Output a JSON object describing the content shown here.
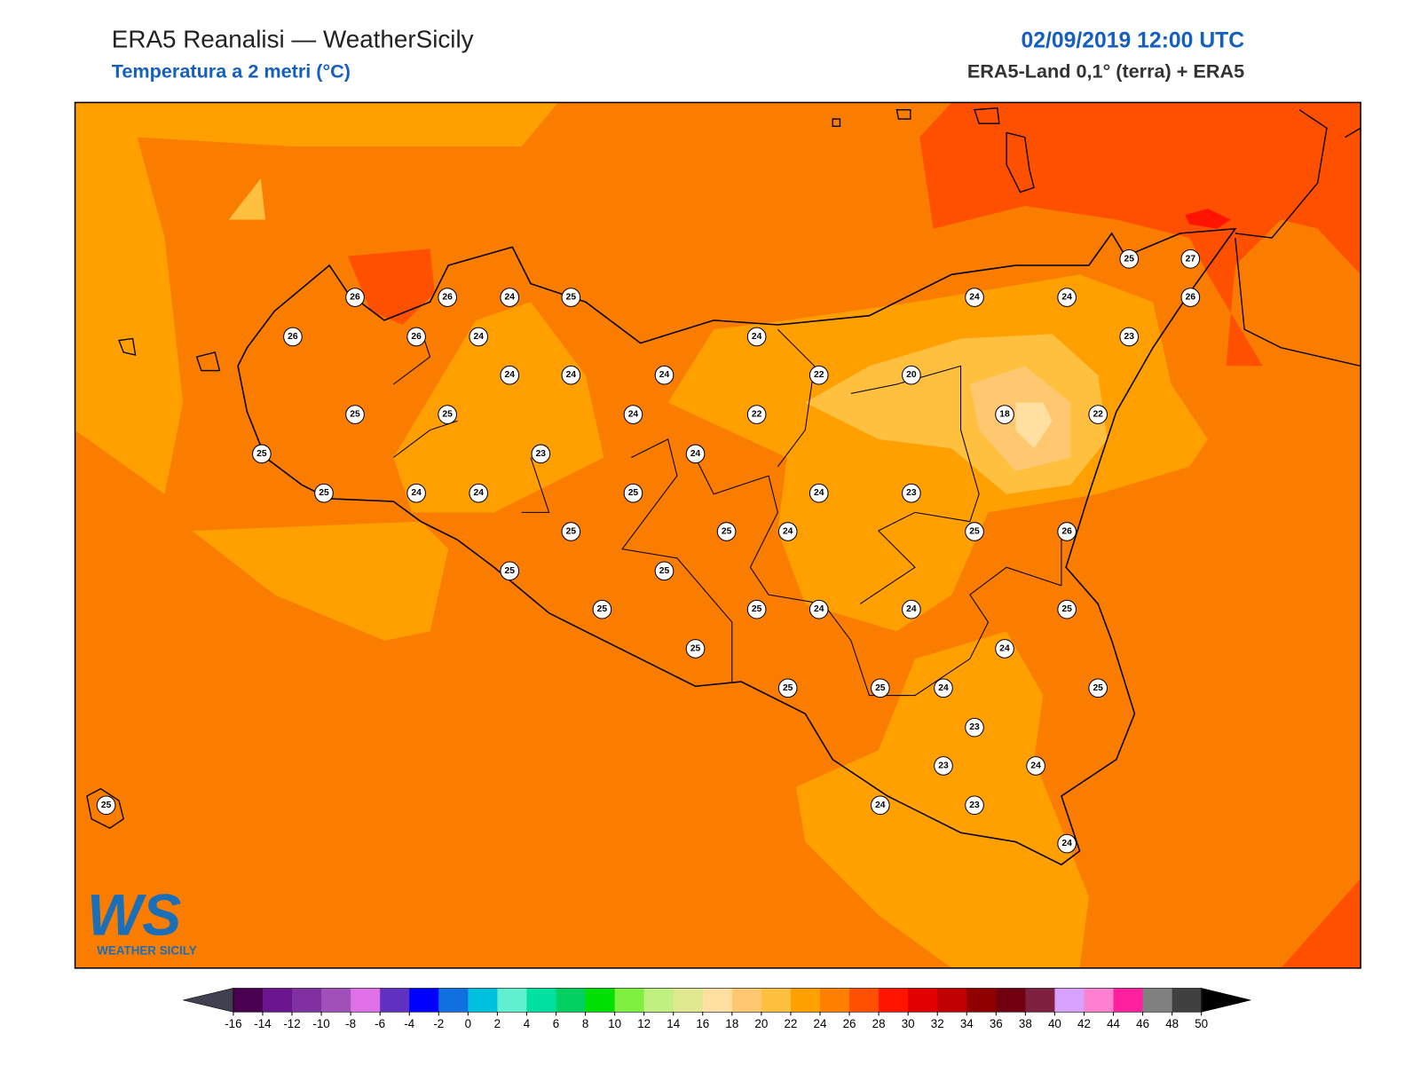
{
  "header": {
    "title": "ERA5 Reanalisi — WeatherSicily",
    "subtitle": "Temperatura a 2 metri (°C)",
    "datetime": "02/09/2019 12:00 UTC",
    "source": "ERA5-Land 0,1° (terra) + ERA5"
  },
  "stations": [
    25,
    27,
    26,
    26,
    24,
    25,
    24,
    24,
    26,
    26,
    26,
    24,
    24,
    23,
    24,
    24,
    24,
    22,
    20,
    25,
    25,
    24,
    22,
    18,
    22,
    25,
    23,
    24,
    25,
    24,
    24,
    25,
    24,
    23,
    25,
    25,
    24,
    25,
    26,
    25,
    25,
    25,
    25,
    24,
    24,
    25,
    25,
    24,
    25,
    25,
    24,
    25,
    23,
    23,
    24,
    25,
    24,
    23,
    24
  ],
  "logo": {
    "mark": "WS",
    "text": "WEATHER SICILY"
  },
  "colorbar": {
    "ticks": [
      -16,
      -14,
      -12,
      -10,
      -8,
      -6,
      -4,
      -2,
      0,
      2,
      4,
      6,
      8,
      10,
      12,
      14,
      16,
      18,
      20,
      22,
      24,
      26,
      28,
      30,
      32,
      34,
      36,
      38,
      40,
      42,
      44,
      46,
      48,
      50
    ],
    "colors": [
      "#4a0050",
      "#6a1490",
      "#8030a0",
      "#a050b8",
      "#e070e8",
      "#6030c0",
      "#0000ff",
      "#1070e0",
      "#00c0e0",
      "#60f0d0",
      "#00e0a0",
      "#00d060",
      "#00e000",
      "#80f040",
      "#c0f080",
      "#e0e890",
      "#ffe0a0",
      "#ffc870",
      "#ffc040",
      "#ffa000",
      "#ff7f00",
      "#ff5000",
      "#ff1400",
      "#e00000",
      "#c00000",
      "#900000",
      "#700010",
      "#802040",
      "#d8a0ff",
      "#ff80d0",
      "#ff20a0",
      "#808080",
      "#404040"
    ],
    "under_color": "#404050",
    "over_color": "#000000"
  }
}
